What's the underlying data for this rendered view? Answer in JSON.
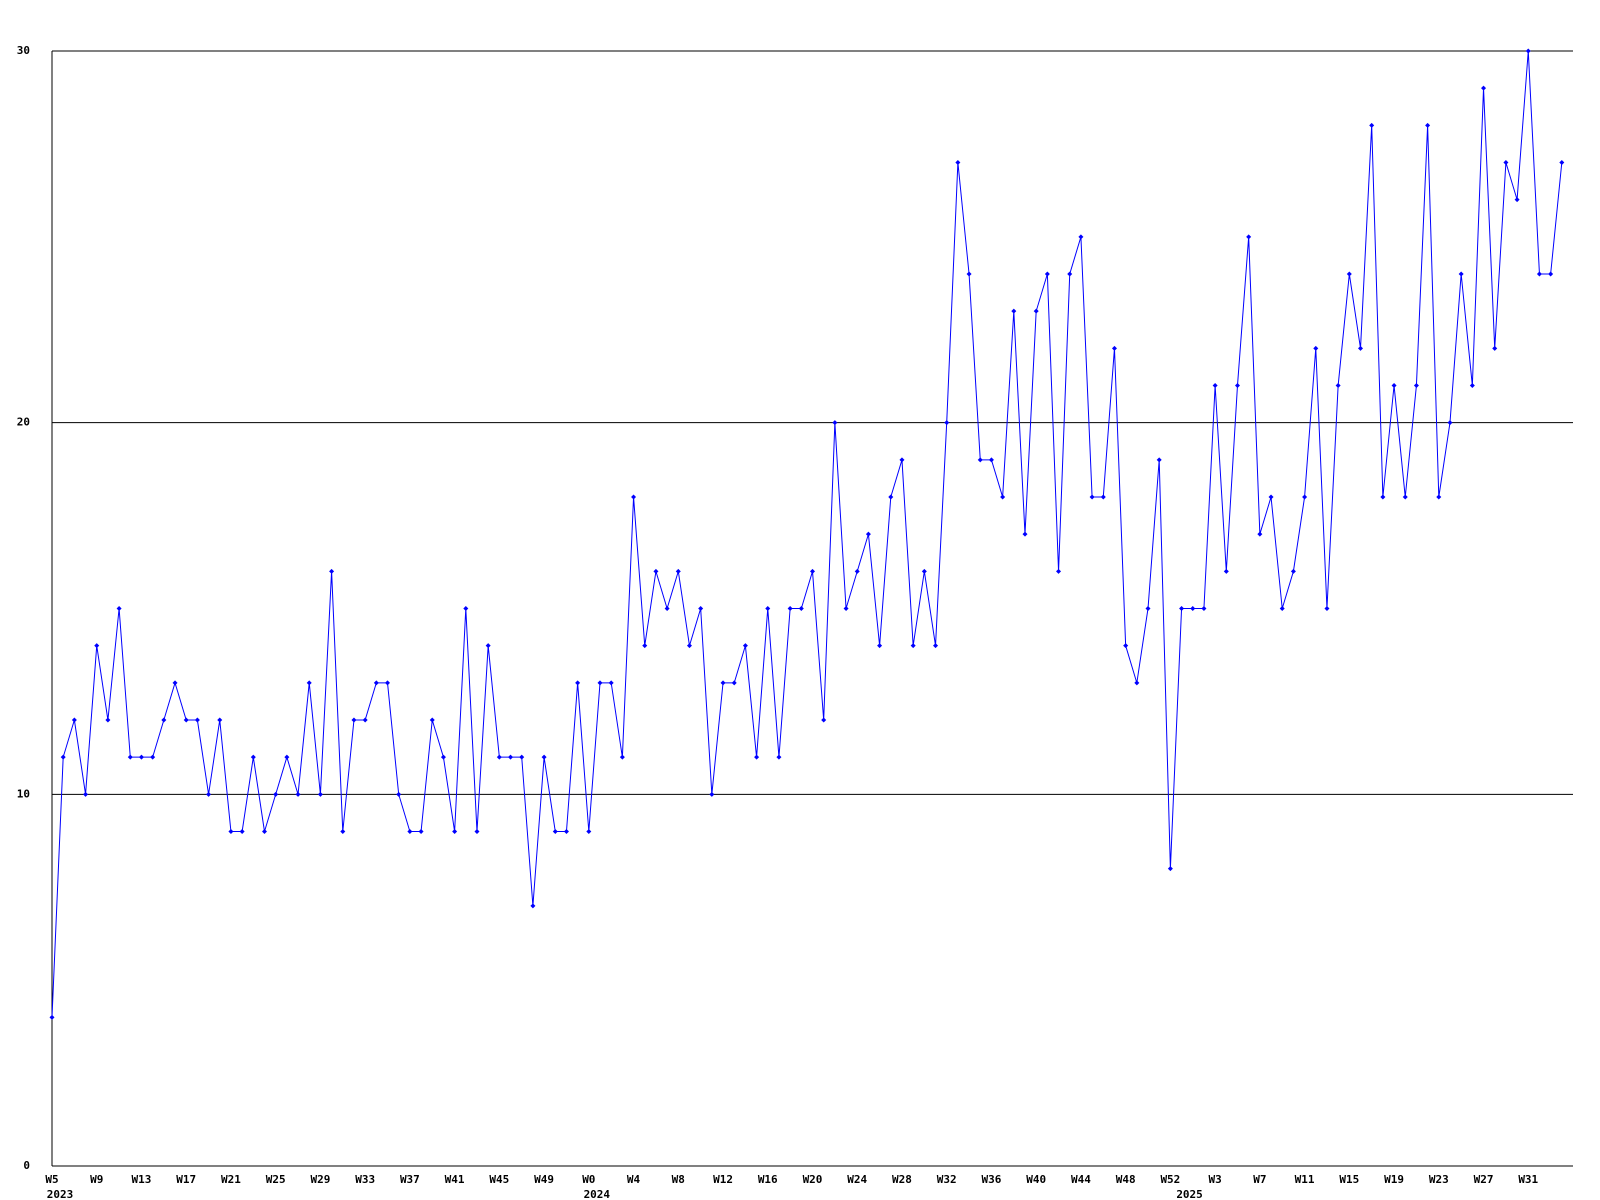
{
  "chart_data": {
    "type": "line",
    "categories": [
      "W5",
      null,
      null,
      null,
      "W9",
      null,
      null,
      null,
      "W13",
      null,
      null,
      null,
      "W17",
      null,
      null,
      null,
      "W21",
      null,
      null,
      null,
      "W25",
      null,
      null,
      null,
      "W29",
      null,
      null,
      null,
      "W33",
      null,
      null,
      null,
      "W37",
      null,
      null,
      null,
      "W41",
      null,
      null,
      null,
      "W45",
      null,
      null,
      null,
      "W49",
      null,
      null,
      null,
      "W0",
      null,
      null,
      null,
      "W4",
      null,
      null,
      null,
      "W8",
      null,
      null,
      null,
      "W12",
      null,
      null,
      null,
      "W16",
      null,
      null,
      null,
      "W20",
      null,
      null,
      null,
      "W24",
      null,
      null,
      null,
      "W28",
      null,
      null,
      null,
      "W32",
      null,
      null,
      null,
      "W36",
      null,
      null,
      null,
      "W40",
      null,
      null,
      null,
      "W44",
      null,
      null,
      null,
      "W48",
      null,
      null,
      null,
      "W52",
      null,
      null,
      null,
      "W3",
      null,
      null,
      null,
      "W7",
      null,
      null,
      null,
      "W11",
      null,
      null,
      null,
      "W15",
      null,
      null,
      null,
      "W19",
      null,
      null,
      null,
      "W23",
      null,
      null,
      null,
      "W27",
      null,
      null,
      null,
      "W31",
      null,
      null,
      null
    ],
    "years": [
      "2023",
      null,
      null,
      null,
      null,
      null,
      null,
      null,
      null,
      null,
      null,
      null,
      null,
      null,
      null,
      null,
      null,
      null,
      null,
      null,
      null,
      null,
      null,
      null,
      null,
      null,
      null,
      null,
      null,
      null,
      null,
      null,
      null,
      null,
      null,
      null,
      null,
      null,
      null,
      null,
      null,
      null,
      null,
      null,
      null,
      null,
      null,
      null,
      "2024",
      null,
      null,
      null,
      null,
      null,
      null,
      null,
      null,
      null,
      null,
      null,
      null,
      null,
      null,
      null,
      null,
      null,
      null,
      null,
      null,
      null,
      null,
      null,
      null,
      null,
      null,
      null,
      null,
      null,
      null,
      null,
      null,
      null,
      null,
      null,
      null,
      null,
      null,
      null,
      null,
      null,
      null,
      null,
      null,
      null,
      null,
      null,
      null,
      null,
      null,
      null,
      null,
      "2025",
      null,
      null,
      null,
      null,
      null,
      null,
      null,
      null,
      null,
      null,
      null,
      null,
      null,
      null,
      null,
      null,
      null,
      null,
      null,
      null,
      null,
      null,
      null,
      null,
      null,
      null,
      null,
      null,
      null,
      null,
      null,
      null,
      null
    ],
    "series": [
      {
        "color": "#0000ff",
        "values": [
          4,
          11,
          12,
          10,
          14,
          12,
          15,
          11,
          11,
          11,
          12,
          13,
          12,
          12,
          10,
          12,
          9,
          9,
          11,
          9,
          10,
          11,
          10,
          13,
          10,
          16,
          9,
          12,
          12,
          13,
          13,
          10,
          9,
          9,
          12,
          11,
          9,
          15,
          9,
          14,
          11,
          11,
          11,
          7,
          11,
          9,
          9,
          13,
          9,
          13,
          13,
          11,
          18,
          14,
          16,
          15,
          16,
          14,
          15,
          10,
          13,
          13,
          14,
          11,
          15,
          11,
          15,
          15,
          16,
          12,
          20,
          15,
          16,
          17,
          14,
          18,
          19,
          14,
          16,
          14,
          20,
          27,
          24,
          19,
          19,
          18,
          23,
          17,
          23,
          24,
          16,
          24,
          25,
          18,
          18,
          22,
          14,
          13,
          15,
          19,
          8,
          15,
          15,
          15,
          21,
          16,
          21,
          25,
          17,
          18,
          15,
          16,
          18,
          22,
          15,
          21,
          24,
          22,
          28,
          18,
          21,
          18,
          21,
          28,
          18,
          20,
          24,
          21,
          29,
          22,
          27,
          26,
          30,
          24,
          24,
          27
        ]
      }
    ],
    "ylim": [
      0,
      30
    ],
    "yticks": [
      0,
      10,
      20,
      30
    ],
    "grid": true
  }
}
